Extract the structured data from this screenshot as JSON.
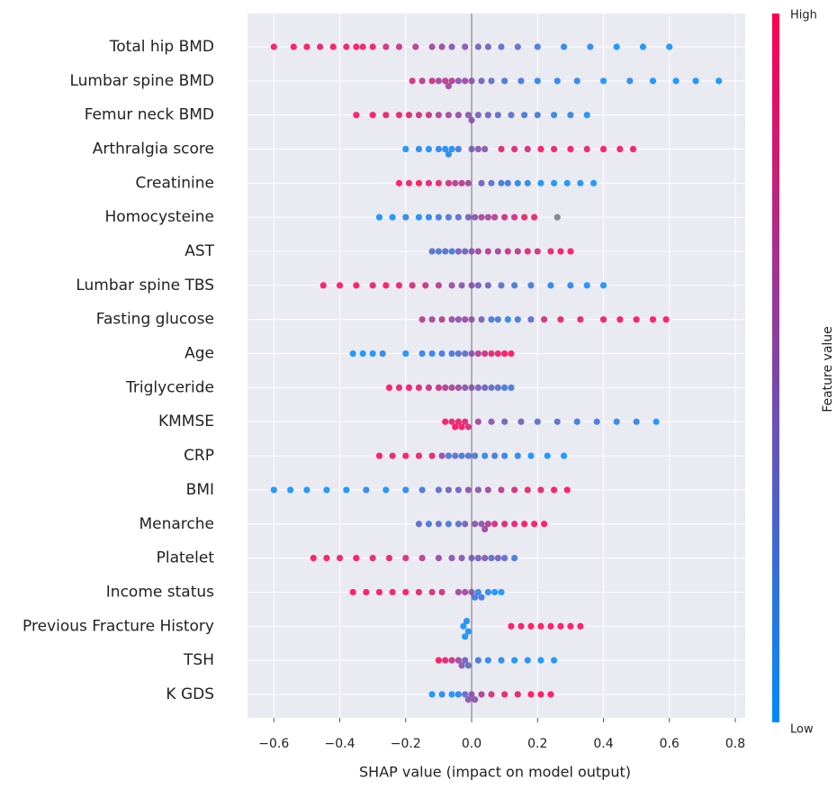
{
  "chart_data": {
    "type": "beeswarm",
    "xlabel": "SHAP value (impact on model output)",
    "xlim": [
      -0.68,
      0.83
    ],
    "xticks": [
      {
        "value": -0.6,
        "label": "−0.6"
      },
      {
        "value": -0.4,
        "label": "−0.4"
      },
      {
        "value": -0.2,
        "label": "−0.2"
      },
      {
        "value": 0,
        "label": "0.0"
      },
      0.2,
      0.4,
      0.6,
      0.8
    ],
    "grid": true,
    "color_low": "#008bfb",
    "color_high": "#ff0052",
    "missing_color": "#777777",
    "colorbar": {
      "title": "Feature value",
      "high_label": "High",
      "low_label": "Low"
    },
    "features": [
      {
        "name": "Total hip BMD",
        "shap": [
          -0.6,
          -0.54,
          -0.5,
          -0.46,
          -0.42,
          -0.38,
          -0.35,
          -0.33,
          -0.3,
          -0.26,
          -0.22,
          -0.17,
          -0.12,
          -0.09,
          -0.06,
          -0.02,
          0.02,
          0.05,
          0.09,
          0.14,
          0.2,
          0.28,
          0.36,
          0.44,
          0.52,
          0.6
        ],
        "feature_value": [
          1,
          1,
          1,
          0.9,
          1,
          0.9,
          1,
          0.9,
          0.9,
          0.8,
          0.8,
          0.7,
          0.6,
          0.6,
          0.5,
          0.5,
          0.4,
          0.4,
          0.3,
          0.3,
          0.2,
          0.1,
          0.1,
          0,
          0,
          0
        ]
      },
      {
        "name": "Lumbar spine BMD",
        "shap": [
          -0.18,
          -0.15,
          -0.12,
          -0.1,
          -0.08,
          -0.07,
          -0.06,
          -0.04,
          -0.02,
          0,
          0.03,
          0.06,
          0.1,
          0.15,
          0.2,
          0.26,
          0.32,
          0.4,
          0.48,
          0.55,
          0.62,
          0.68,
          0.75
        ],
        "feature_value": [
          0.8,
          0.7,
          0.8,
          0.6,
          0.7,
          0.6,
          0.7,
          0.5,
          0.6,
          0.5,
          0.4,
          0.3,
          0.2,
          0.2,
          0.1,
          0.1,
          0.1,
          0,
          0.1,
          0,
          0,
          0,
          0
        ]
      },
      {
        "name": "Femur neck BMD",
        "shap": [
          -0.35,
          -0.3,
          -0.26,
          -0.22,
          -0.19,
          -0.16,
          -0.13,
          -0.1,
          -0.07,
          -0.04,
          -0.01,
          0,
          0.02,
          0.05,
          0.08,
          0.12,
          0.16,
          0.2,
          0.25,
          0.3,
          0.35
        ],
        "feature_value": [
          1,
          1,
          0.9,
          0.9,
          0.9,
          0.8,
          0.8,
          0.7,
          0.6,
          0.6,
          0.5,
          0.5,
          0.4,
          0.4,
          0.3,
          0.3,
          0.2,
          0.2,
          0.1,
          0.1,
          0
        ]
      },
      {
        "name": "Arthralgia score",
        "shap": [
          -0.2,
          -0.16,
          -0.13,
          -0.1,
          -0.08,
          -0.07,
          -0.06,
          -0.04,
          0,
          0.02,
          0.04,
          0.09,
          0.13,
          0.17,
          0.21,
          0.25,
          0.3,
          0.35,
          0.4,
          0.45,
          0.49
        ],
        "feature_value": [
          0,
          0.1,
          0,
          0.1,
          0,
          0.1,
          0,
          0.2,
          0.4,
          0.5,
          0.5,
          0.9,
          0.9,
          0.8,
          1,
          0.9,
          1,
          0.9,
          1,
          1,
          1
        ]
      },
      {
        "name": "Creatinine",
        "shap": [
          -0.22,
          -0.19,
          -0.16,
          -0.13,
          -0.1,
          -0.07,
          -0.05,
          -0.03,
          -0.01,
          0.03,
          0.06,
          0.09,
          0.11,
          0.14,
          0.17,
          0.21,
          0.25,
          0.29,
          0.33,
          0.37
        ],
        "feature_value": [
          1,
          0.9,
          1,
          0.9,
          0.9,
          0.8,
          0.7,
          0.7,
          0.6,
          0.4,
          0.3,
          0.2,
          0.2,
          0.1,
          0.1,
          0,
          0,
          0,
          0,
          0
        ]
      },
      {
        "name": "Homocysteine",
        "shap": [
          -0.28,
          -0.24,
          -0.2,
          -0.16,
          -0.13,
          -0.1,
          -0.07,
          -0.04,
          -0.01,
          0.01,
          0.03,
          0.05,
          0.07,
          0.1,
          0.13,
          0.16,
          0.19,
          0.26
        ],
        "feature_value": [
          0,
          0,
          0.1,
          0,
          0.1,
          0.2,
          0.2,
          0.3,
          0.4,
          0.5,
          0.6,
          0.6,
          0.7,
          0.8,
          0.8,
          0.9,
          0.9,
          null
        ]
      },
      {
        "name": "AST",
        "shap": [
          -0.12,
          -0.1,
          -0.08,
          -0.06,
          -0.04,
          -0.02,
          0,
          0.02,
          0.05,
          0.08,
          0.11,
          0.14,
          0.17,
          0.2,
          0.24,
          0.27,
          0.3
        ],
        "feature_value": [
          0.3,
          0.2,
          0.3,
          0.2,
          0.4,
          0.4,
          0.5,
          0.6,
          0.7,
          0.6,
          0.8,
          0.7,
          0.9,
          0.8,
          0.9,
          1,
          1
        ]
      },
      {
        "name": "Lumbar spine TBS",
        "shap": [
          -0.45,
          -0.4,
          -0.35,
          -0.3,
          -0.26,
          -0.22,
          -0.18,
          -0.14,
          -0.1,
          -0.06,
          -0.03,
          0,
          0.02,
          0.05,
          0.09,
          0.13,
          0.18,
          0.24,
          0.3,
          0.35,
          0.4
        ],
        "feature_value": [
          1,
          1,
          1,
          0.9,
          1,
          0.9,
          0.8,
          0.8,
          0.7,
          0.6,
          0.5,
          0.5,
          0.4,
          0.4,
          0.3,
          0.2,
          0.2,
          0.1,
          0.1,
          0,
          0
        ]
      },
      {
        "name": "Fasting glucose",
        "shap": [
          -0.15,
          -0.12,
          -0.09,
          -0.06,
          -0.04,
          -0.02,
          0,
          0.03,
          0.06,
          0.08,
          0.11,
          0.14,
          0.18,
          0.22,
          0.27,
          0.33,
          0.4,
          0.45,
          0.5,
          0.55,
          0.59
        ],
        "feature_value": [
          0.7,
          0.6,
          0.7,
          0.6,
          0.5,
          0.6,
          0.5,
          0.4,
          0.2,
          0.2,
          0.1,
          0.2,
          0.3,
          0.8,
          0.9,
          0.9,
          1,
          1,
          1,
          1,
          1
        ]
      },
      {
        "name": "Age",
        "shap": [
          -0.36,
          -0.33,
          -0.3,
          -0.27,
          -0.2,
          -0.15,
          -0.12,
          -0.09,
          -0.06,
          -0.04,
          -0.02,
          0,
          0.02,
          0.04,
          0.06,
          0.08,
          0.1,
          0.12
        ],
        "feature_value": [
          0,
          0,
          0,
          0.1,
          0,
          0.1,
          0.1,
          0.2,
          0.2,
          0.3,
          0.3,
          0.5,
          0.7,
          0.8,
          0.9,
          0.9,
          1,
          1
        ]
      },
      {
        "name": "Triglyceride",
        "shap": [
          -0.25,
          -0.22,
          -0.19,
          -0.16,
          -0.13,
          -0.1,
          -0.08,
          -0.06,
          -0.04,
          -0.02,
          0,
          0.02,
          0.04,
          0.06,
          0.08,
          0.1,
          0.12
        ],
        "feature_value": [
          1,
          0.9,
          1,
          0.9,
          0.8,
          0.8,
          0.7,
          0.6,
          0.6,
          0.5,
          0.5,
          0.4,
          0.4,
          0.3,
          0.3,
          0.2,
          0.2
        ]
      },
      {
        "name": "KMMSE",
        "shap": [
          -0.08,
          -0.06,
          -0.05,
          -0.04,
          -0.03,
          -0.02,
          -0.01,
          0.02,
          0.06,
          0.1,
          0.15,
          0.2,
          0.26,
          0.32,
          0.38,
          0.44,
          0.5,
          0.56
        ],
        "feature_value": [
          1,
          0.9,
          1,
          0.9,
          1,
          0.9,
          0.8,
          0.6,
          0.5,
          0.4,
          0.4,
          0.3,
          0.3,
          0.2,
          0.2,
          0.1,
          0.1,
          0
        ]
      },
      {
        "name": "CRP",
        "shap": [
          -0.28,
          -0.24,
          -0.2,
          -0.16,
          -0.12,
          -0.09,
          -0.07,
          -0.05,
          -0.03,
          -0.01,
          0.01,
          0.04,
          0.07,
          0.1,
          0.14,
          0.18,
          0.23,
          0.28
        ],
        "feature_value": [
          1,
          0.9,
          1,
          0.9,
          0.9,
          0.6,
          0.2,
          0.3,
          0.2,
          0.3,
          0.2,
          0.1,
          0.2,
          0.1,
          0.1,
          0,
          0,
          0
        ]
      },
      {
        "name": "BMI",
        "shap": [
          -0.6,
          -0.55,
          -0.5,
          -0.44,
          -0.38,
          -0.32,
          -0.26,
          -0.2,
          -0.15,
          -0.1,
          -0.07,
          -0.04,
          -0.01,
          0.02,
          0.05,
          0.09,
          0.13,
          0.17,
          0.21,
          0.25,
          0.29
        ],
        "feature_value": [
          0,
          0,
          0,
          0,
          0,
          0.1,
          0,
          0.1,
          0.2,
          0.3,
          0.4,
          0.4,
          0.5,
          0.5,
          0.6,
          0.7,
          0.8,
          0.9,
          0.9,
          1,
          1
        ]
      },
      {
        "name": "Menarche",
        "shap": [
          -0.16,
          -0.13,
          -0.1,
          -0.07,
          -0.04,
          -0.02,
          0.01,
          0.03,
          0.04,
          0.05,
          0.07,
          0.1,
          0.13,
          0.16,
          0.19,
          0.22
        ],
        "feature_value": [
          0.3,
          0.2,
          0.3,
          0.2,
          0.3,
          0.4,
          0.5,
          0.5,
          0.6,
          0.7,
          0.8,
          0.9,
          0.9,
          1,
          1,
          1
        ]
      },
      {
        "name": "Platelet",
        "shap": [
          -0.48,
          -0.44,
          -0.4,
          -0.35,
          -0.3,
          -0.25,
          -0.2,
          -0.15,
          -0.1,
          -0.06,
          -0.03,
          0,
          0.02,
          0.04,
          0.06,
          0.08,
          0.1,
          0.13
        ],
        "feature_value": [
          1,
          1,
          0.9,
          1,
          0.9,
          0.9,
          0.8,
          0.7,
          0.6,
          0.5,
          0.5,
          0.4,
          0.4,
          0.5,
          0.3,
          0.4,
          0.3,
          0.2
        ]
      },
      {
        "name": "Income status",
        "shap": [
          -0.36,
          -0.32,
          -0.28,
          -0.24,
          -0.2,
          -0.16,
          -0.12,
          -0.09,
          -0.04,
          -0.02,
          0,
          0.01,
          0.02,
          0.03,
          0.05,
          0.07,
          0.09
        ],
        "feature_value": [
          1,
          1,
          1,
          0.9,
          1,
          0.9,
          0.8,
          0.8,
          0.6,
          0.6,
          0.5,
          0.2,
          0.1,
          0.2,
          0.1,
          0,
          0
        ]
      },
      {
        "name": "Previous Fracture History",
        "shap": [
          -0.025,
          -0.02,
          -0.015,
          -0.01,
          0.12,
          0.15,
          0.18,
          0.21,
          0.24,
          0.27,
          0.3,
          0.33
        ],
        "feature_value": [
          0,
          0,
          0,
          0,
          1,
          1,
          1,
          1,
          1,
          1,
          1,
          1
        ]
      },
      {
        "name": "TSH",
        "shap": [
          -0.1,
          -0.08,
          -0.06,
          -0.04,
          -0.03,
          -0.02,
          -0.01,
          0.02,
          0.05,
          0.09,
          0.13,
          0.17,
          0.21,
          0.25
        ],
        "feature_value": [
          1,
          0.9,
          0.8,
          0.6,
          0.5,
          0.4,
          0.3,
          0.2,
          0.1,
          0.1,
          0,
          0,
          0,
          0
        ]
      },
      {
        "name": "K GDS",
        "shap": [
          -0.12,
          -0.09,
          -0.06,
          -0.04,
          -0.02,
          -0.01,
          0,
          0.01,
          0.03,
          0.06,
          0.1,
          0.14,
          0.18,
          0.21,
          0.24
        ],
        "feature_value": [
          0,
          0.1,
          0,
          0.1,
          0.3,
          0.5,
          0.5,
          0.5,
          0.7,
          0.8,
          0.9,
          0.9,
          1,
          1,
          1
        ]
      }
    ]
  }
}
